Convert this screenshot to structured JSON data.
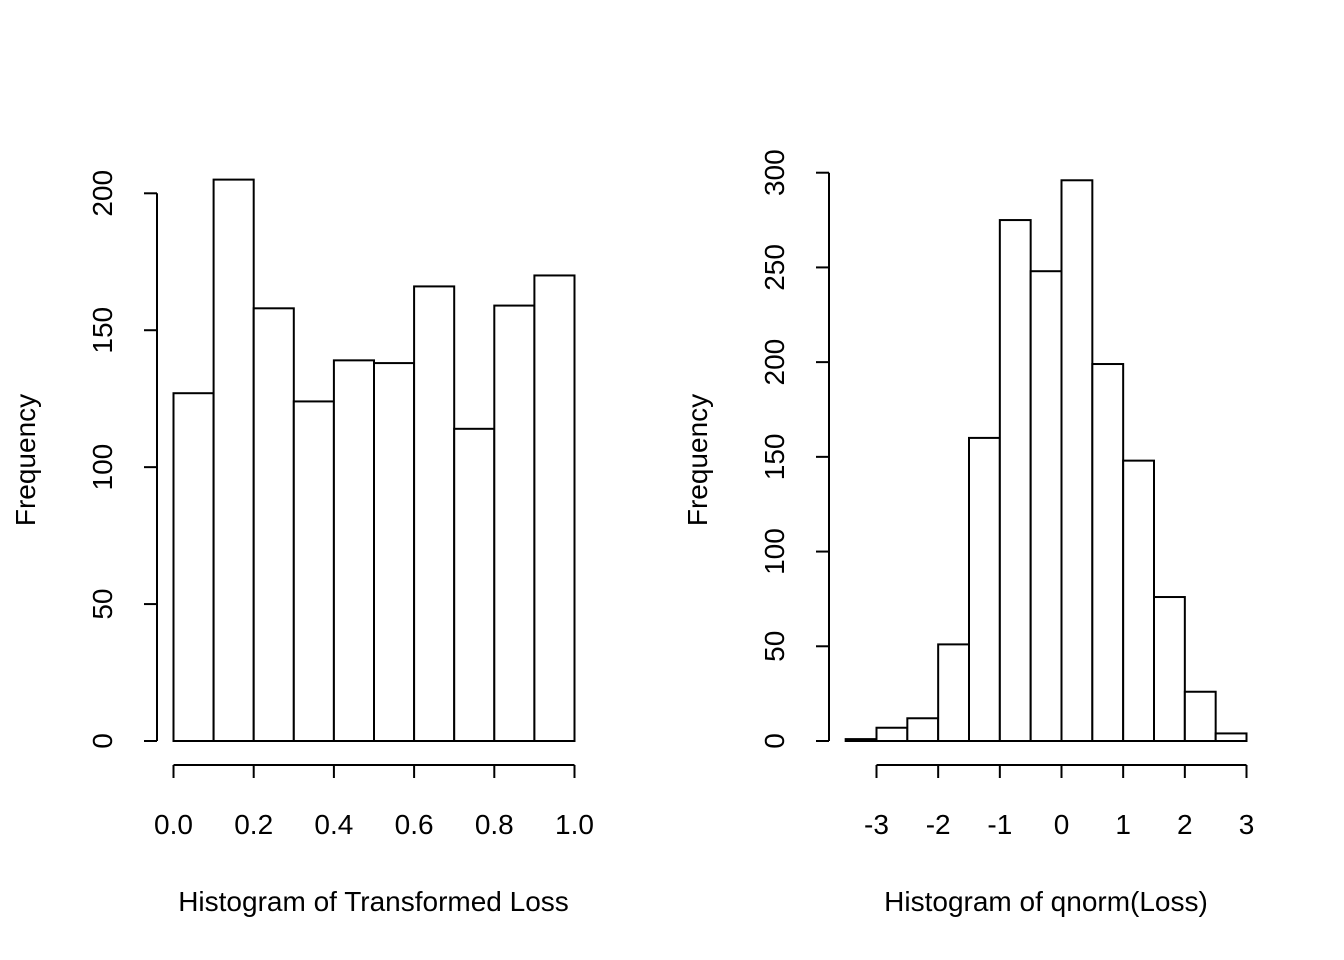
{
  "chart_data": [
    {
      "type": "bar",
      "title": "",
      "xlabel": "Histogram of Transformed Loss",
      "ylabel": "Frequency",
      "bin_edges": [
        0.0,
        0.1,
        0.2,
        0.3,
        0.4,
        0.5,
        0.6,
        0.7,
        0.8,
        0.9,
        1.0
      ],
      "values": [
        127,
        205,
        158,
        124,
        139,
        138,
        166,
        114,
        159,
        170
      ],
      "xticks": [
        0.0,
        0.2,
        0.4,
        0.6,
        0.8,
        1.0
      ],
      "xtick_labels": [
        "0.0",
        "0.2",
        "0.4",
        "0.6",
        "0.8",
        "1.0"
      ],
      "yticks": [
        0,
        50,
        100,
        150,
        200
      ],
      "ytick_labels": [
        "0",
        "50",
        "100",
        "150",
        "200"
      ],
      "xlim": [
        0.0,
        1.0
      ],
      "ylim": [
        0,
        200
      ],
      "grid": false
    },
    {
      "type": "bar",
      "title": "",
      "xlabel": "Histogram of qnorm(Loss)",
      "ylabel": "Frequency",
      "bin_edges": [
        -3.5,
        -3.0,
        -2.5,
        -2.0,
        -1.5,
        -1.0,
        -0.5,
        0.0,
        0.5,
        1.0,
        1.5,
        2.0,
        2.5,
        3.0
      ],
      "values": [
        1,
        7,
        12,
        51,
        160,
        275,
        248,
        296,
        199,
        148,
        76,
        26,
        4
      ],
      "xticks": [
        -3,
        -2,
        -1,
        0,
        1,
        2,
        3
      ],
      "xtick_labels": [
        "-3",
        "-2",
        "-1",
        "0",
        "1",
        "2",
        "3"
      ],
      "yticks": [
        0,
        50,
        100,
        150,
        200,
        250,
        300
      ],
      "ytick_labels": [
        "0",
        "50",
        "100",
        "150",
        "200",
        "250",
        "300"
      ],
      "xlim": [
        -3,
        3
      ],
      "ylim": [
        0,
        300
      ],
      "grid": false
    }
  ]
}
